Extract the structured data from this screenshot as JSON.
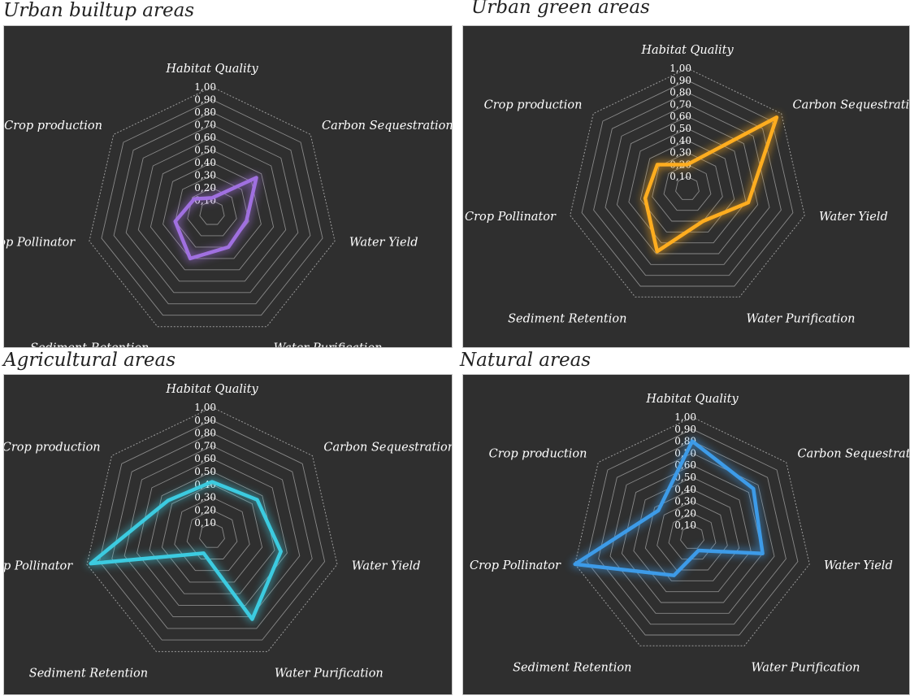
{
  "chart_data": [
    {
      "type": "radar",
      "title": "Urban builtup areas",
      "axes": [
        "Habitat Quality",
        "Carbon Sequestration",
        "Water Yield",
        "Water Purification",
        "Sediment Retention",
        "Crop Pollinator",
        "Crop production"
      ],
      "ticks": [
        "0,10",
        "0,20",
        "0,30",
        "0,40",
        "0,50",
        "0,60",
        "0,70",
        "0,80",
        "0,90",
        "1,00"
      ],
      "rlim": [
        0,
        1
      ],
      "values": [
        0.12,
        0.45,
        0.28,
        0.3,
        0.4,
        0.3,
        0.18
      ],
      "color": "#a070e0"
    },
    {
      "type": "radar",
      "title": "Urban green areas",
      "axes": [
        "Habitat Quality",
        "Carbon Sequestration",
        "Water Yield",
        "Water Purification",
        "Sediment Retention",
        "Crop Pollinator",
        "Crop production"
      ],
      "ticks": [
        "0,10",
        "0,20",
        "0,30",
        "0,40",
        "0,50",
        "0,60",
        "0,70",
        "0,80",
        "0,90",
        "1,00"
      ],
      "rlim": [
        0,
        1
      ],
      "values": [
        0.2,
        0.95,
        0.52,
        0.3,
        0.58,
        0.36,
        0.32
      ],
      "color": "#ffad1f"
    },
    {
      "type": "radar",
      "title": "Agricultural areas",
      "axes": [
        "Habitat Quality",
        "Carbon Sequestration",
        "Water Yield",
        "Water Purification",
        "Sediment Retention",
        "Crop Pollinator",
        "Crop production"
      ],
      "ticks": [
        "0,10",
        "0,20",
        "0,30",
        "0,40",
        "0,50",
        "0,60",
        "0,70",
        "0,80",
        "0,90",
        "1,00"
      ],
      "rlim": [
        0,
        1
      ],
      "values": [
        0.42,
        0.45,
        0.55,
        0.72,
        0.15,
        0.97,
        0.44
      ],
      "color": "#3ccbe0"
    },
    {
      "type": "radar",
      "title": "Natural areas",
      "axes": [
        "Habitat Quality",
        "Carbon Sequestration",
        "Water Yield",
        "Water Purification",
        "Sediment Retention",
        "Crop Pollinator",
        "Crop production"
      ],
      "ticks": [
        "0,10",
        "0,20",
        "0,30",
        "0,40",
        "0,50",
        "0,60",
        "0,70",
        "0,80",
        "0,90",
        "1,00"
      ],
      "rlim": [
        0,
        1
      ],
      "values": [
        0.8,
        0.65,
        0.6,
        0.12,
        0.35,
        1.0,
        0.36
      ],
      "color": "#3d9be8"
    }
  ]
}
